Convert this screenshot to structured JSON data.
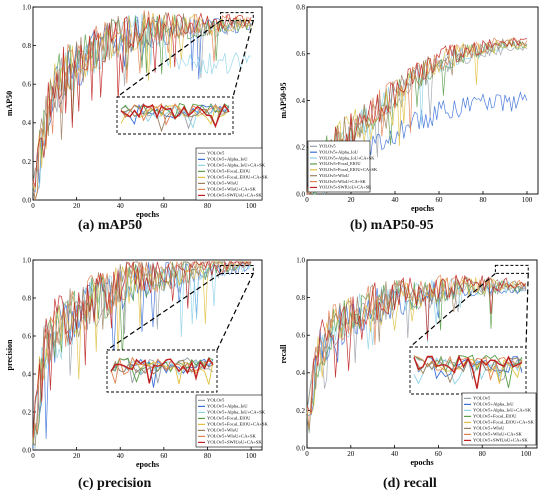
{
  "legend_entries": [
    "YOLOv5",
    "YOLOv5+Alpha_IoU",
    "YOLOv5+Alpha_IoU+CA+SK",
    "YOLOv5+Focal_EIOU",
    "YOLOv5+Focal_EIOU+CA+SK",
    "YOLOv5+WIoU",
    "YOLOv5+WIoU+CA+SK",
    "YOLOv5+SWIUoU+CA+SK"
  ],
  "series_colors": [
    "#9aa0a8",
    "#3a6fd8",
    "#8fd3e8",
    "#5a9e4a",
    "#e0c040",
    "#9a8060",
    "#e08050",
    "#c02020"
  ],
  "chart_data": [
    {
      "type": "line",
      "caption": "(a) mAP50",
      "xlabel": "epochs",
      "ylabel": "mAP50",
      "xlim": [
        0,
        105
      ],
      "ylim": [
        0,
        1.0
      ],
      "xticks": [
        "0",
        "20",
        "40",
        "60",
        "80",
        "100"
      ],
      "yticks": [
        "0.0",
        "0.2",
        "0.4",
        "0.6",
        "0.8",
        "1.0"
      ],
      "legend": "bottom-right",
      "inset": "zoom of epochs 80-100 near 0.90",
      "approx_trend": {
        "x": [
          0,
          5,
          10,
          20,
          30,
          40,
          50,
          60,
          70,
          80,
          90,
          100
        ],
        "y": [
          0.02,
          0.35,
          0.6,
          0.72,
          0.8,
          0.85,
          0.88,
          0.89,
          0.9,
          0.9,
          0.91,
          0.91
        ]
      }
    },
    {
      "type": "line",
      "caption": "(b) mAP50-95",
      "xlabel": "epochs",
      "ylabel": "mAP50-95",
      "xlim": [
        0,
        105
      ],
      "ylim": [
        0,
        0.8
      ],
      "xticks": [
        "0",
        "20",
        "40",
        "60",
        "80",
        "100"
      ],
      "yticks": [
        "0.0",
        "0.2",
        "0.4",
        "0.6",
        "0.8"
      ],
      "legend": "top-left",
      "approx_trend": {
        "x": [
          0,
          5,
          10,
          20,
          30,
          40,
          50,
          60,
          70,
          80,
          90,
          100
        ],
        "y": [
          0.01,
          0.1,
          0.18,
          0.27,
          0.34,
          0.42,
          0.5,
          0.56,
          0.6,
          0.62,
          0.64,
          0.64
        ]
      }
    },
    {
      "type": "line",
      "caption": "(c) precision",
      "xlabel": "epochs",
      "ylabel": "precision",
      "xlim": [
        0,
        105
      ],
      "ylim": [
        0,
        1.0
      ],
      "xticks": [
        "0",
        "20",
        "40",
        "60",
        "80",
        "100"
      ],
      "yticks": [
        "0.0",
        "0.2",
        "0.4",
        "0.6",
        "0.8",
        "1.0"
      ],
      "legend": "bottom-right",
      "inset": "zoom of epochs 80-100 near 0.97",
      "approx_trend": {
        "x": [
          0,
          5,
          10,
          20,
          30,
          40,
          50,
          60,
          70,
          80,
          90,
          100
        ],
        "y": [
          0.05,
          0.5,
          0.62,
          0.72,
          0.8,
          0.86,
          0.9,
          0.92,
          0.94,
          0.96,
          0.97,
          0.98
        ]
      }
    },
    {
      "type": "line",
      "caption": "(d) recall",
      "xlabel": "epochs",
      "ylabel": "recall",
      "xlim": [
        0,
        105
      ],
      "ylim": [
        0,
        1.0
      ],
      "xticks": [
        "0",
        "20",
        "40",
        "60",
        "80",
        "100"
      ],
      "yticks": [
        "0.0",
        "0.2",
        "0.4",
        "0.6",
        "0.8",
        "1.0"
      ],
      "legend": "bottom-right",
      "inset": "zoom of epochs 80-100 near 0.86",
      "approx_trend": {
        "x": [
          0,
          5,
          10,
          20,
          30,
          40,
          50,
          60,
          70,
          80,
          90,
          100
        ],
        "y": [
          0.1,
          0.5,
          0.62,
          0.7,
          0.76,
          0.8,
          0.82,
          0.84,
          0.85,
          0.86,
          0.86,
          0.86
        ]
      }
    }
  ]
}
